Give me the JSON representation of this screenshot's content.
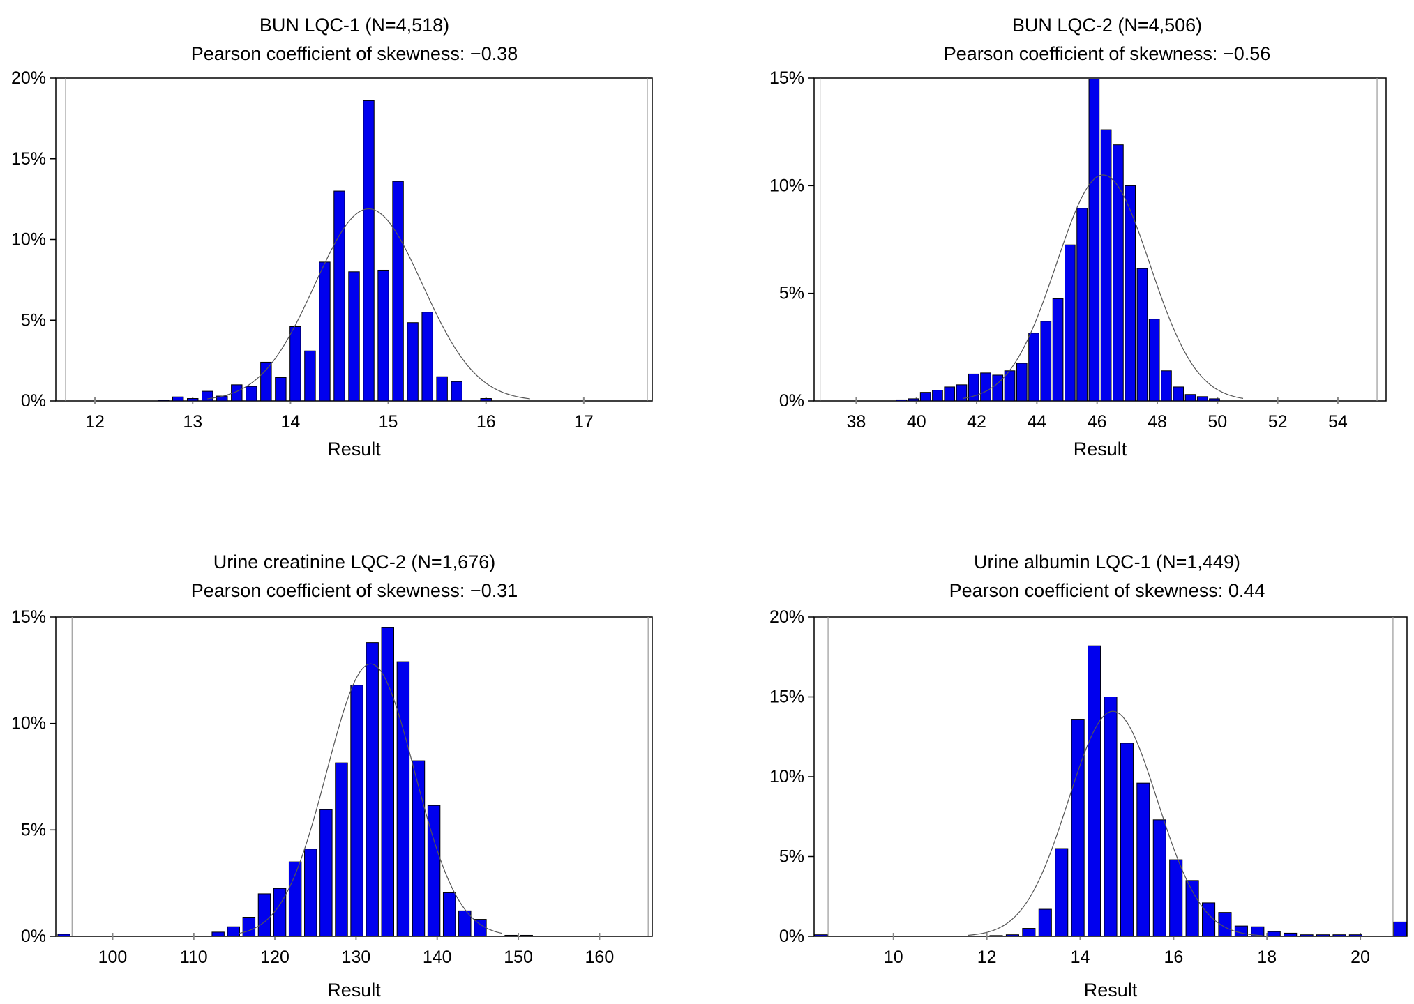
{
  "chart_data": [
    {
      "type": "bar",
      "title": "BUN LQC-1 (N=4,518)",
      "subtitle": "Pearson coefficient of skewness: −0.38",
      "xlabel": "Result",
      "ylabel": "",
      "xlim": [
        11.6,
        17.7
      ],
      "ylim": [
        0,
        20
      ],
      "xticks": [
        12,
        13,
        14,
        15,
        16,
        17
      ],
      "xtick_labels": [
        "12",
        "13",
        "14",
        "15",
        "16",
        "17"
      ],
      "yticks": [
        0,
        5,
        10,
        15,
        20
      ],
      "ytick_labels": [
        "0%",
        "5%",
        "10%",
        "15%",
        "20%"
      ],
      "ref_lines": [
        11.7,
        17.65
      ],
      "bar_width": 0.11,
      "bars": [
        {
          "x": 12.7,
          "y": 0.05
        },
        {
          "x": 12.85,
          "y": 0.25
        },
        {
          "x": 13.0,
          "y": 0.15
        },
        {
          "x": 13.15,
          "y": 0.6
        },
        {
          "x": 13.3,
          "y": 0.3
        },
        {
          "x": 13.45,
          "y": 1.0
        },
        {
          "x": 13.6,
          "y": 0.9
        },
        {
          "x": 13.75,
          "y": 2.4
        },
        {
          "x": 13.9,
          "y": 1.45
        },
        {
          "x": 14.05,
          "y": 4.6
        },
        {
          "x": 14.2,
          "y": 3.1
        },
        {
          "x": 14.35,
          "y": 8.6
        },
        {
          "x": 14.5,
          "y": 13.0
        },
        {
          "x": 14.65,
          "y": 8.0
        },
        {
          "x": 14.8,
          "y": 18.6
        },
        {
          "x": 14.95,
          "y": 8.1
        },
        {
          "x": 15.1,
          "y": 13.6
        },
        {
          "x": 15.25,
          "y": 4.85
        },
        {
          "x": 15.4,
          "y": 5.5
        },
        {
          "x": 15.55,
          "y": 1.5
        },
        {
          "x": 15.7,
          "y": 1.2
        },
        {
          "x": 16.0,
          "y": 0.15
        }
      ],
      "curve": {
        "mean": 14.8,
        "sd": 0.55,
        "peak": 11.9
      }
    },
    {
      "type": "bar",
      "title": "BUN LQC-2 (N=4,506)",
      "subtitle": "Pearson coefficient of skewness: −0.56",
      "xlabel": "Result",
      "ylabel": "",
      "xlim": [
        36.6,
        55.6
      ],
      "ylim": [
        0,
        15
      ],
      "xticks": [
        38,
        40,
        42,
        44,
        46,
        48,
        50,
        52,
        54
      ],
      "xtick_labels": [
        "38",
        "40",
        "42",
        "44",
        "46",
        "48",
        "50",
        "52",
        "54"
      ],
      "yticks": [
        0,
        5,
        10,
        15
      ],
      "ytick_labels": [
        "0%",
        "5%",
        "10%",
        "15%"
      ],
      "ref_lines": [
        36.8,
        55.3
      ],
      "bar_width": 0.34,
      "bars": [
        {
          "x": 39.5,
          "y": 0.05
        },
        {
          "x": 39.9,
          "y": 0.1
        },
        {
          "x": 40.3,
          "y": 0.4
        },
        {
          "x": 40.7,
          "y": 0.5
        },
        {
          "x": 41.1,
          "y": 0.65
        },
        {
          "x": 41.5,
          "y": 0.75
        },
        {
          "x": 41.9,
          "y": 1.25
        },
        {
          "x": 42.3,
          "y": 1.3
        },
        {
          "x": 42.7,
          "y": 1.2
        },
        {
          "x": 43.1,
          "y": 1.4
        },
        {
          "x": 43.5,
          "y": 1.75
        },
        {
          "x": 43.9,
          "y": 3.15
        },
        {
          "x": 44.3,
          "y": 3.7
        },
        {
          "x": 44.7,
          "y": 4.75
        },
        {
          "x": 45.1,
          "y": 7.25
        },
        {
          "x": 45.5,
          "y": 8.95
        },
        {
          "x": 45.9,
          "y": 14.95
        },
        {
          "x": 46.3,
          "y": 12.6
        },
        {
          "x": 46.7,
          "y": 11.9
        },
        {
          "x": 47.1,
          "y": 10.0
        },
        {
          "x": 47.5,
          "y": 6.15
        },
        {
          "x": 47.9,
          "y": 3.8
        },
        {
          "x": 48.3,
          "y": 1.4
        },
        {
          "x": 48.7,
          "y": 0.65
        },
        {
          "x": 49.1,
          "y": 0.3
        },
        {
          "x": 49.5,
          "y": 0.2
        },
        {
          "x": 49.9,
          "y": 0.1
        }
      ],
      "curve": {
        "mean": 46.2,
        "sd": 1.55,
        "peak": 10.5
      }
    },
    {
      "type": "bar",
      "title": "Urine creatinine LQC-2 (N=1,676)",
      "subtitle": "Pearson coefficient of skewness: −0.31",
      "xlabel": "Result",
      "ylabel": "",
      "xlim": [
        93,
        166.5
      ],
      "ylim": [
        0,
        15
      ],
      "xticks": [
        100,
        110,
        120,
        130,
        140,
        150,
        160
      ],
      "xtick_labels": [
        "100",
        "110",
        "120",
        "130",
        "140",
        "150",
        "160"
      ],
      "yticks": [
        0,
        5,
        10,
        15
      ],
      "ytick_labels": [
        "0%",
        "5%",
        "10%",
        "15%"
      ],
      "ref_lines": [
        95,
        166
      ],
      "bar_width": 1.5,
      "bars": [
        {
          "x": 94,
          "y": 0.1
        },
        {
          "x": 113,
          "y": 0.2
        },
        {
          "x": 114.9,
          "y": 0.45
        },
        {
          "x": 116.8,
          "y": 0.9
        },
        {
          "x": 118.7,
          "y": 2.0
        },
        {
          "x": 120.6,
          "y": 2.25
        },
        {
          "x": 122.5,
          "y": 3.5
        },
        {
          "x": 124.4,
          "y": 4.1
        },
        {
          "x": 126.3,
          "y": 5.95
        },
        {
          "x": 128.2,
          "y": 8.15
        },
        {
          "x": 130.1,
          "y": 11.8
        },
        {
          "x": 132.0,
          "y": 13.8
        },
        {
          "x": 133.9,
          "y": 14.5
        },
        {
          "x": 135.8,
          "y": 12.9
        },
        {
          "x": 137.7,
          "y": 8.25
        },
        {
          "x": 139.6,
          "y": 6.15
        },
        {
          "x": 141.5,
          "y": 2.05
        },
        {
          "x": 143.4,
          "y": 1.2
        },
        {
          "x": 145.3,
          "y": 0.8
        },
        {
          "x": 149.1,
          "y": 0.05
        },
        {
          "x": 151.0,
          "y": 0.05
        }
      ],
      "curve": {
        "mean": 131.8,
        "sd": 5.4,
        "peak": 12.8
      }
    },
    {
      "type": "bar",
      "title": "Urine albumin LQC-1 (N=1,449)",
      "subtitle": "Pearson coefficient of skewness: 0.44",
      "xlabel": "Result",
      "ylabel": "",
      "xlim": [
        8.3,
        21.0
      ],
      "ylim": [
        0,
        20
      ],
      "xticks": [
        10,
        12,
        14,
        16,
        18,
        20
      ],
      "xtick_labels": [
        "10",
        "12",
        "14",
        "16",
        "18",
        "20"
      ],
      "yticks": [
        0,
        5,
        10,
        15,
        20
      ],
      "ytick_labels": [
        "0%",
        "5%",
        "10%",
        "15%",
        "20%"
      ],
      "ref_lines": [
        8.6,
        20.7
      ],
      "bar_width": 0.27,
      "bars": [
        {
          "x": 8.45,
          "y": 0.1
        },
        {
          "x": 12.2,
          "y": 0.05
        },
        {
          "x": 12.55,
          "y": 0.1
        },
        {
          "x": 12.9,
          "y": 0.5
        },
        {
          "x": 13.25,
          "y": 1.7
        },
        {
          "x": 13.6,
          "y": 5.5
        },
        {
          "x": 13.95,
          "y": 13.6
        },
        {
          "x": 14.3,
          "y": 18.2
        },
        {
          "x": 14.65,
          "y": 15.0
        },
        {
          "x": 15.0,
          "y": 12.1
        },
        {
          "x": 15.35,
          "y": 9.6
        },
        {
          "x": 15.7,
          "y": 7.3
        },
        {
          "x": 16.05,
          "y": 4.8
        },
        {
          "x": 16.4,
          "y": 3.5
        },
        {
          "x": 16.75,
          "y": 2.1
        },
        {
          "x": 17.1,
          "y": 1.5
        },
        {
          "x": 17.45,
          "y": 0.65
        },
        {
          "x": 17.8,
          "y": 0.6
        },
        {
          "x": 18.15,
          "y": 0.3
        },
        {
          "x": 18.5,
          "y": 0.2
        },
        {
          "x": 18.85,
          "y": 0.1
        },
        {
          "x": 19.2,
          "y": 0.1
        },
        {
          "x": 19.55,
          "y": 0.1
        },
        {
          "x": 19.9,
          "y": 0.1
        },
        {
          "x": 20.85,
          "y": 0.9
        }
      ],
      "curve": {
        "mean": 14.7,
        "sd": 0.95,
        "peak": 14.1,
        "xmin": 11.6,
        "xmax": 17.9
      }
    }
  ]
}
